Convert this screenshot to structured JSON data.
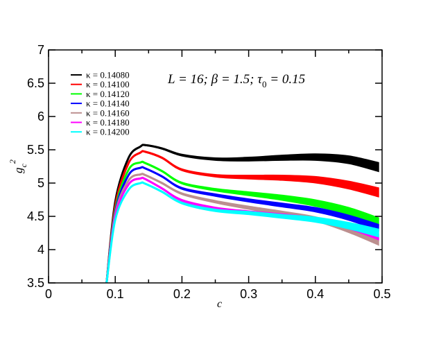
{
  "chart_data": {
    "type": "line",
    "title": "",
    "annotation": {
      "text_main": "L = 16; β = 1.5; τ",
      "subscript": "0",
      "text_tail": " = 0.15"
    },
    "xlabel": "c",
    "ylabel": {
      "base": "g",
      "subscript": "c",
      "superscript": "2"
    },
    "xlim": [
      0,
      0.5
    ],
    "ylim": [
      3.5,
      7
    ],
    "xticks": [
      "0",
      "0.1",
      "0.2",
      "0.3",
      "0.4",
      "0.5"
    ],
    "yticks": [
      "3.5",
      "4",
      "4.5",
      "5",
      "5.5",
      "6",
      "6.5",
      "7"
    ],
    "grid": false,
    "legend_position": "top-left",
    "x": [
      0.087,
      0.1,
      0.12,
      0.138,
      0.145,
      0.17,
      0.2,
      0.25,
      0.3,
      0.35,
      0.4,
      0.45,
      0.495
    ],
    "series": [
      {
        "name": "κ = 0.14080",
        "color": "#000000",
        "y": [
          3.5,
          4.72,
          5.38,
          5.55,
          5.57,
          5.52,
          5.42,
          5.36,
          5.36,
          5.38,
          5.39,
          5.35,
          5.24
        ],
        "band": [
          0.01,
          0.01,
          0.01,
          0.01,
          0.01,
          0.012,
          0.015,
          0.02,
          0.03,
          0.04,
          0.05,
          0.06,
          0.07
        ]
      },
      {
        "name": "κ = 0.14100",
        "color": "#ff0000",
        "y": [
          3.5,
          4.66,
          5.3,
          5.46,
          5.47,
          5.38,
          5.2,
          5.11,
          5.09,
          5.08,
          5.05,
          4.97,
          4.86
        ],
        "band": [
          0.01,
          0.01,
          0.01,
          0.01,
          0.01,
          0.012,
          0.015,
          0.02,
          0.03,
          0.04,
          0.05,
          0.06,
          0.07
        ]
      },
      {
        "name": "κ = 0.14120",
        "color": "#00ff00",
        "y": [
          3.5,
          4.6,
          5.2,
          5.31,
          5.3,
          5.18,
          5.0,
          4.9,
          4.84,
          4.78,
          4.7,
          4.58,
          4.42
        ],
        "band": [
          0.01,
          0.01,
          0.01,
          0.01,
          0.01,
          0.012,
          0.015,
          0.02,
          0.03,
          0.04,
          0.05,
          0.055,
          0.06
        ]
      },
      {
        "name": "κ = 0.14140",
        "color": "#0000ff",
        "y": [
          3.5,
          4.57,
          5.12,
          5.23,
          5.22,
          5.1,
          4.92,
          4.82,
          4.74,
          4.67,
          4.6,
          4.48,
          4.33
        ],
        "band": [
          0.01,
          0.01,
          0.01,
          0.01,
          0.01,
          0.012,
          0.015,
          0.02,
          0.025,
          0.03,
          0.035,
          0.04,
          0.05
        ]
      },
      {
        "name": "κ = 0.14160",
        "color": "#bc8f8f",
        "y": [
          3.5,
          4.54,
          5.04,
          5.13,
          5.12,
          5.0,
          4.84,
          4.72,
          4.63,
          4.55,
          4.46,
          4.3,
          4.12
        ],
        "band": [
          0.01,
          0.01,
          0.01,
          0.01,
          0.01,
          0.012,
          0.015,
          0.02,
          0.025,
          0.03,
          0.035,
          0.045,
          0.055
        ]
      },
      {
        "name": "κ = 0.14180",
        "color": "#ff00ff",
        "y": [
          3.5,
          4.5,
          4.98,
          5.07,
          5.06,
          4.92,
          4.74,
          4.62,
          4.56,
          4.51,
          4.45,
          4.35,
          4.19
        ],
        "band": [
          0.01,
          0.01,
          0.01,
          0.01,
          0.01,
          0.012,
          0.015,
          0.02,
          0.025,
          0.03,
          0.035,
          0.04,
          0.045
        ]
      },
      {
        "name": "κ = 0.14200",
        "color": "#00ffff",
        "y": [
          3.5,
          4.45,
          4.9,
          5.0,
          4.99,
          4.87,
          4.7,
          4.59,
          4.55,
          4.5,
          4.45,
          4.36,
          4.25
        ],
        "band": [
          0.01,
          0.01,
          0.01,
          0.01,
          0.01,
          0.012,
          0.015,
          0.02,
          0.025,
          0.03,
          0.04,
          0.05,
          0.06
        ]
      }
    ]
  }
}
